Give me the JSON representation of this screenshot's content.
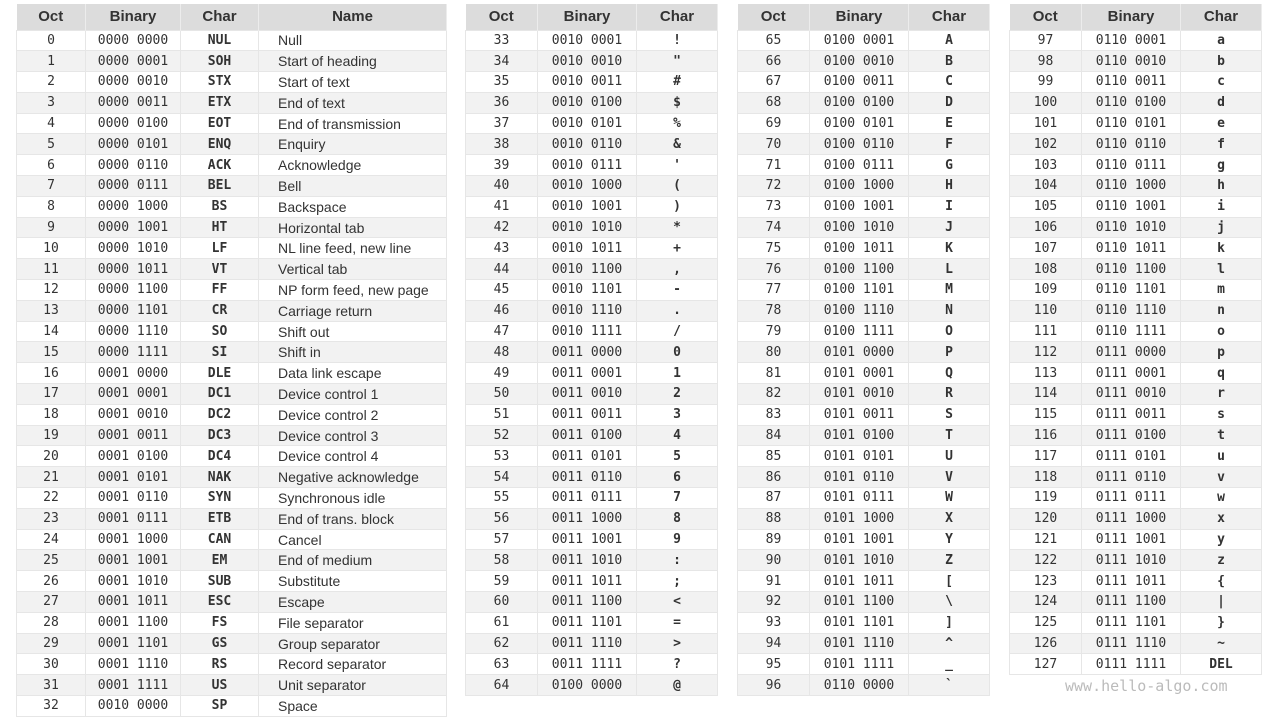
{
  "headers": {
    "oct": "Oct",
    "binary": "Binary",
    "char": "Char",
    "name": "Name"
  },
  "watermark": "www.hello-algo.com",
  "tables": [
    [
      [
        "0",
        "0000 0000",
        "NUL",
        "Null"
      ],
      [
        "1",
        "0000 0001",
        "SOH",
        "Start of heading"
      ],
      [
        "2",
        "0000 0010",
        "STX",
        "Start of text"
      ],
      [
        "3",
        "0000 0011",
        "ETX",
        "End of text"
      ],
      [
        "4",
        "0000 0100",
        "EOT",
        "End of transmission"
      ],
      [
        "5",
        "0000 0101",
        "ENQ",
        "Enquiry"
      ],
      [
        "6",
        "0000 0110",
        "ACK",
        "Acknowledge"
      ],
      [
        "7",
        "0000 0111",
        "BEL",
        "Bell"
      ],
      [
        "8",
        "0000 1000",
        "BS",
        "Backspace"
      ],
      [
        "9",
        "0000 1001",
        "HT",
        "Horizontal tab"
      ],
      [
        "10",
        "0000 1010",
        "LF",
        "NL line feed, new line"
      ],
      [
        "11",
        "0000 1011",
        "VT",
        "Vertical tab"
      ],
      [
        "12",
        "0000 1100",
        "FF",
        "NP form feed, new page"
      ],
      [
        "13",
        "0000 1101",
        "CR",
        "Carriage return"
      ],
      [
        "14",
        "0000 1110",
        "SO",
        "Shift out"
      ],
      [
        "15",
        "0000 1111",
        "SI",
        "Shift in"
      ],
      [
        "16",
        "0001 0000",
        "DLE",
        "Data link escape"
      ],
      [
        "17",
        "0001 0001",
        "DC1",
        "Device control 1"
      ],
      [
        "18",
        "0001 0010",
        "DC2",
        "Device control 2"
      ],
      [
        "19",
        "0001 0011",
        "DC3",
        "Device control 3"
      ],
      [
        "20",
        "0001 0100",
        "DC4",
        "Device control 4"
      ],
      [
        "21",
        "0001 0101",
        "NAK",
        "Negative acknowledge"
      ],
      [
        "22",
        "0001 0110",
        "SYN",
        "Synchronous idle"
      ],
      [
        "23",
        "0001 0111",
        "ETB",
        "End of trans. block"
      ],
      [
        "24",
        "0001 1000",
        "CAN",
        "Cancel"
      ],
      [
        "25",
        "0001 1001",
        "EM",
        "End of medium"
      ],
      [
        "26",
        "0001 1010",
        "SUB",
        "Substitute"
      ],
      [
        "27",
        "0001 1011",
        "ESC",
        "Escape"
      ],
      [
        "28",
        "0001 1100",
        "FS",
        "File separator"
      ],
      [
        "29",
        "0001 1101",
        "GS",
        "Group separator"
      ],
      [
        "30",
        "0001 1110",
        "RS",
        "Record separator"
      ],
      [
        "31",
        "0001 1111",
        "US",
        "Unit separator"
      ],
      [
        "32",
        "0010 0000",
        "SP",
        "Space"
      ]
    ],
    [
      [
        "33",
        "0010 0001",
        "!"
      ],
      [
        "34",
        "0010 0010",
        "\""
      ],
      [
        "35",
        "0010 0011",
        "#"
      ],
      [
        "36",
        "0010 0100",
        "$"
      ],
      [
        "37",
        "0010 0101",
        "%"
      ],
      [
        "38",
        "0010 0110",
        "&"
      ],
      [
        "39",
        "0010 0111",
        "'"
      ],
      [
        "40",
        "0010 1000",
        "("
      ],
      [
        "41",
        "0010 1001",
        ")"
      ],
      [
        "42",
        "0010 1010",
        "*"
      ],
      [
        "43",
        "0010 1011",
        "+"
      ],
      [
        "44",
        "0010 1100",
        ","
      ],
      [
        "45",
        "0010 1101",
        "-"
      ],
      [
        "46",
        "0010 1110",
        "."
      ],
      [
        "47",
        "0010 1111",
        "/"
      ],
      [
        "48",
        "0011 0000",
        "0"
      ],
      [
        "49",
        "0011 0001",
        "1"
      ],
      [
        "50",
        "0011 0010",
        "2"
      ],
      [
        "51",
        "0011 0011",
        "3"
      ],
      [
        "52",
        "0011 0100",
        "4"
      ],
      [
        "53",
        "0011 0101",
        "5"
      ],
      [
        "54",
        "0011 0110",
        "6"
      ],
      [
        "55",
        "0011 0111",
        "7"
      ],
      [
        "56",
        "0011 1000",
        "8"
      ],
      [
        "57",
        "0011 1001",
        "9"
      ],
      [
        "58",
        "0011 1010",
        ":"
      ],
      [
        "59",
        "0011 1011",
        ";"
      ],
      [
        "60",
        "0011 1100",
        "<"
      ],
      [
        "61",
        "0011 1101",
        "="
      ],
      [
        "62",
        "0011 1110",
        ">"
      ],
      [
        "63",
        "0011 1111",
        "?"
      ],
      [
        "64",
        "0100 0000",
        "@"
      ]
    ],
    [
      [
        "65",
        "0100 0001",
        "A"
      ],
      [
        "66",
        "0100 0010",
        "B"
      ],
      [
        "67",
        "0100 0011",
        "C"
      ],
      [
        "68",
        "0100 0100",
        "D"
      ],
      [
        "69",
        "0100 0101",
        "E"
      ],
      [
        "70",
        "0100 0110",
        "F"
      ],
      [
        "71",
        "0100 0111",
        "G"
      ],
      [
        "72",
        "0100 1000",
        "H"
      ],
      [
        "73",
        "0100 1001",
        "I"
      ],
      [
        "74",
        "0100 1010",
        "J"
      ],
      [
        "75",
        "0100 1011",
        "K"
      ],
      [
        "76",
        "0100 1100",
        "L"
      ],
      [
        "77",
        "0100 1101",
        "M"
      ],
      [
        "78",
        "0100 1110",
        "N"
      ],
      [
        "79",
        "0100 1111",
        "O"
      ],
      [
        "80",
        "0101 0000",
        "P"
      ],
      [
        "81",
        "0101 0001",
        "Q"
      ],
      [
        "82",
        "0101 0010",
        "R"
      ],
      [
        "83",
        "0101 0011",
        "S"
      ],
      [
        "84",
        "0101 0100",
        "T"
      ],
      [
        "85",
        "0101 0101",
        "U"
      ],
      [
        "86",
        "0101 0110",
        "V"
      ],
      [
        "87",
        "0101 0111",
        "W"
      ],
      [
        "88",
        "0101 1000",
        "X"
      ],
      [
        "89",
        "0101 1001",
        "Y"
      ],
      [
        "90",
        "0101 1010",
        "Z"
      ],
      [
        "91",
        "0101 1011",
        "["
      ],
      [
        "92",
        "0101 1100",
        "\\"
      ],
      [
        "93",
        "0101 1101",
        "]"
      ],
      [
        "94",
        "0101 1110",
        "^"
      ],
      [
        "95",
        "0101 1111",
        "_"
      ],
      [
        "96",
        "0110 0000",
        "`"
      ]
    ],
    [
      [
        "97",
        "0110 0001",
        "a"
      ],
      [
        "98",
        "0110 0010",
        "b"
      ],
      [
        "99",
        "0110 0011",
        "c"
      ],
      [
        "100",
        "0110 0100",
        "d"
      ],
      [
        "101",
        "0110 0101",
        "e"
      ],
      [
        "102",
        "0110 0110",
        "f"
      ],
      [
        "103",
        "0110 0111",
        "g"
      ],
      [
        "104",
        "0110 1000",
        "h"
      ],
      [
        "105",
        "0110 1001",
        "i"
      ],
      [
        "106",
        "0110 1010",
        "j"
      ],
      [
        "107",
        "0110 1011",
        "k"
      ],
      [
        "108",
        "0110 1100",
        "l"
      ],
      [
        "109",
        "0110 1101",
        "m"
      ],
      [
        "110",
        "0110 1110",
        "n"
      ],
      [
        "111",
        "0110 1111",
        "o"
      ],
      [
        "112",
        "0111 0000",
        "p"
      ],
      [
        "113",
        "0111 0001",
        "q"
      ],
      [
        "114",
        "0111 0010",
        "r"
      ],
      [
        "115",
        "0111 0011",
        "s"
      ],
      [
        "116",
        "0111 0100",
        "t"
      ],
      [
        "117",
        "0111 0101",
        "u"
      ],
      [
        "118",
        "0111 0110",
        "v"
      ],
      [
        "119",
        "0111 0111",
        "w"
      ],
      [
        "120",
        "0111 1000",
        "x"
      ],
      [
        "121",
        "0111 1001",
        "y"
      ],
      [
        "122",
        "0111 1010",
        "z"
      ],
      [
        "123",
        "0111 1011",
        "{"
      ],
      [
        "124",
        "0111 1100",
        "|"
      ],
      [
        "125",
        "0111 1101",
        "}"
      ],
      [
        "126",
        "0111 1110",
        "~"
      ],
      [
        "127",
        "0111 1111",
        "DEL"
      ]
    ]
  ]
}
